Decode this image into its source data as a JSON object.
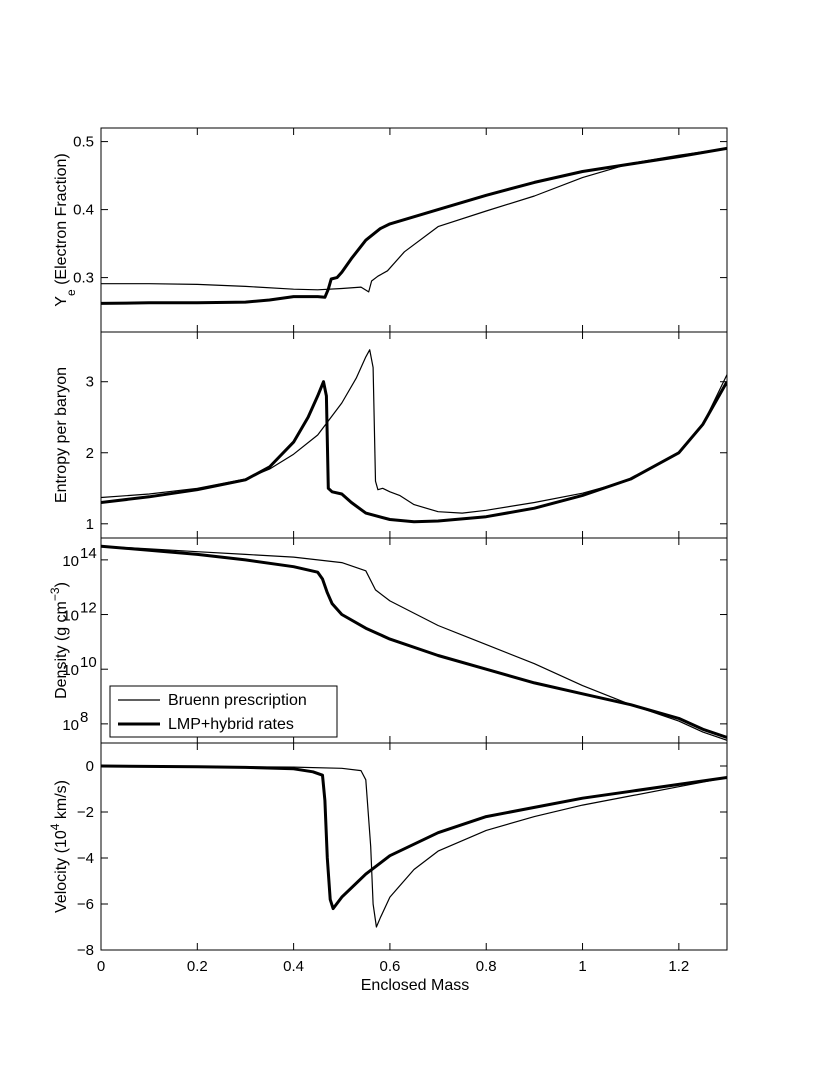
{
  "figure": {
    "xlabel": "Enclosed Mass",
    "xlim": [
      0,
      1.3
    ],
    "xticks": [
      0,
      0.2,
      0.4,
      0.6,
      0.8,
      1,
      1.2
    ],
    "xtick_labels": [
      "0",
      "0.2",
      "0.4",
      "0.6",
      "0.8",
      "1",
      "1.2"
    ],
    "legend": {
      "panel": 3,
      "placement": "lower-left",
      "entries": [
        {
          "label": "Bruenn prescription",
          "style": "thin"
        },
        {
          "label": "LMP+hybrid rates",
          "style": "thick"
        }
      ]
    }
  },
  "chart_data": [
    {
      "type": "line",
      "ylabel": "Y  (Electron Fraction)",
      "ylabel_main": "Y",
      "ylabel_sub": "e",
      "ylabel_rest": " (Electron Fraction)",
      "ylim": [
        0.22,
        0.52
      ],
      "yscale": "linear",
      "yticks": [
        0.3,
        0.4,
        0.5
      ],
      "ytick_labels": [
        "0.3",
        "0.4",
        "0.5"
      ],
      "series": [
        {
          "name": "Bruenn prescription",
          "style": "thin",
          "points": [
            [
              0,
              0.291
            ],
            [
              0.1,
              0.291
            ],
            [
              0.2,
              0.29
            ],
            [
              0.3,
              0.287
            ],
            [
              0.4,
              0.283
            ],
            [
              0.45,
              0.282
            ],
            [
              0.5,
              0.284
            ],
            [
              0.54,
              0.286
            ],
            [
              0.556,
              0.279
            ],
            [
              0.562,
              0.295
            ],
            [
              0.575,
              0.302
            ],
            [
              0.595,
              0.31
            ],
            [
              0.63,
              0.338
            ],
            [
              0.7,
              0.375
            ],
            [
              0.8,
              0.398
            ],
            [
              0.9,
              0.42
            ],
            [
              1.0,
              0.447
            ],
            [
              1.1,
              0.468
            ],
            [
              1.2,
              0.48
            ],
            [
              1.3,
              0.49
            ]
          ]
        },
        {
          "name": "LMP+hybrid rates",
          "style": "thick",
          "points": [
            [
              0,
              0.262
            ],
            [
              0.1,
              0.263
            ],
            [
              0.2,
              0.263
            ],
            [
              0.3,
              0.264
            ],
            [
              0.35,
              0.267
            ],
            [
              0.4,
              0.272
            ],
            [
              0.45,
              0.272
            ],
            [
              0.465,
              0.271
            ],
            [
              0.472,
              0.283
            ],
            [
              0.478,
              0.298
            ],
            [
              0.49,
              0.3
            ],
            [
              0.5,
              0.308
            ],
            [
              0.52,
              0.328
            ],
            [
              0.55,
              0.355
            ],
            [
              0.58,
              0.372
            ],
            [
              0.6,
              0.379
            ],
            [
              0.7,
              0.4
            ],
            [
              0.8,
              0.421
            ],
            [
              0.9,
              0.44
            ],
            [
              1.0,
              0.456
            ],
            [
              1.1,
              0.467
            ],
            [
              1.2,
              0.478
            ],
            [
              1.3,
              0.49
            ]
          ]
        }
      ]
    },
    {
      "type": "line",
      "ylabel": "Entropy per baryon",
      "ylim": [
        0.8,
        3.7
      ],
      "yscale": "linear",
      "yticks": [
        1,
        2,
        3
      ],
      "ytick_labels": [
        "1",
        "2",
        "3"
      ],
      "series": [
        {
          "name": "Bruenn prescription",
          "style": "thin",
          "points": [
            [
              0,
              1.37
            ],
            [
              0.1,
              1.42
            ],
            [
              0.2,
              1.5
            ],
            [
              0.3,
              1.63
            ],
            [
              0.35,
              1.77
            ],
            [
              0.4,
              1.98
            ],
            [
              0.45,
              2.25
            ],
            [
              0.5,
              2.7
            ],
            [
              0.53,
              3.05
            ],
            [
              0.55,
              3.35
            ],
            [
              0.558,
              3.45
            ],
            [
              0.565,
              3.2
            ],
            [
              0.57,
              1.6
            ],
            [
              0.575,
              1.48
            ],
            [
              0.585,
              1.5
            ],
            [
              0.6,
              1.45
            ],
            [
              0.62,
              1.4
            ],
            [
              0.65,
              1.27
            ],
            [
              0.7,
              1.17
            ],
            [
              0.75,
              1.15
            ],
            [
              0.8,
              1.19
            ],
            [
              0.9,
              1.3
            ],
            [
              1.0,
              1.43
            ],
            [
              1.1,
              1.62
            ],
            [
              1.2,
              2.0
            ],
            [
              1.25,
              2.4
            ],
            [
              1.3,
              3.1
            ]
          ]
        },
        {
          "name": "LMP+hybrid rates",
          "style": "thick",
          "points": [
            [
              0,
              1.3
            ],
            [
              0.1,
              1.38
            ],
            [
              0.2,
              1.48
            ],
            [
              0.3,
              1.62
            ],
            [
              0.35,
              1.8
            ],
            [
              0.4,
              2.15
            ],
            [
              0.43,
              2.5
            ],
            [
              0.45,
              2.8
            ],
            [
              0.462,
              3.0
            ],
            [
              0.468,
              2.8
            ],
            [
              0.472,
              1.5
            ],
            [
              0.48,
              1.45
            ],
            [
              0.5,
              1.42
            ],
            [
              0.52,
              1.3
            ],
            [
              0.55,
              1.15
            ],
            [
              0.6,
              1.06
            ],
            [
              0.65,
              1.03
            ],
            [
              0.7,
              1.04
            ],
            [
              0.8,
              1.1
            ],
            [
              0.9,
              1.22
            ],
            [
              1.0,
              1.4
            ],
            [
              1.1,
              1.63
            ],
            [
              1.2,
              2.0
            ],
            [
              1.25,
              2.4
            ],
            [
              1.3,
              3.0
            ]
          ]
        }
      ]
    },
    {
      "type": "line",
      "ylabel": "Density (g cm  )",
      "ylabel_main": "Density (g cm",
      "ylabel_sup": "−3",
      "ylabel_rest": ")",
      "ylim": [
        7.3,
        14.8
      ],
      "yscale": "log10",
      "yticks": [
        8,
        10,
        12,
        14
      ],
      "ytick_labels": [
        "10",
        "10",
        "10",
        "10"
      ],
      "ytick_exponents": [
        "8",
        "10",
        "12",
        "14"
      ],
      "series": [
        {
          "name": "Bruenn prescription",
          "style": "thin",
          "points": [
            [
              0,
              14.5
            ],
            [
              0.1,
              14.4
            ],
            [
              0.2,
              14.3
            ],
            [
              0.3,
              14.2
            ],
            [
              0.4,
              14.1
            ],
            [
              0.5,
              13.9
            ],
            [
              0.55,
              13.6
            ],
            [
              0.57,
              12.9
            ],
            [
              0.6,
              12.5
            ],
            [
              0.7,
              11.6
            ],
            [
              0.8,
              10.9
            ],
            [
              0.9,
              10.2
            ],
            [
              1.0,
              9.4
            ],
            [
              1.1,
              8.7
            ],
            [
              1.2,
              8.1
            ],
            [
              1.25,
              7.7
            ],
            [
              1.3,
              7.4
            ]
          ]
        },
        {
          "name": "LMP+hybrid rates",
          "style": "thick",
          "points": [
            [
              0,
              14.5
            ],
            [
              0.1,
              14.35
            ],
            [
              0.2,
              14.2
            ],
            [
              0.3,
              14.0
            ],
            [
              0.4,
              13.75
            ],
            [
              0.45,
              13.55
            ],
            [
              0.46,
              13.3
            ],
            [
              0.47,
              12.8
            ],
            [
              0.48,
              12.4
            ],
            [
              0.5,
              12.0
            ],
            [
              0.55,
              11.5
            ],
            [
              0.6,
              11.1
            ],
            [
              0.7,
              10.5
            ],
            [
              0.8,
              10.0
            ],
            [
              0.9,
              9.5
            ],
            [
              1.0,
              9.1
            ],
            [
              1.1,
              8.7
            ],
            [
              1.2,
              8.2
            ],
            [
              1.25,
              7.8
            ],
            [
              1.3,
              7.5
            ]
          ]
        }
      ]
    },
    {
      "type": "line",
      "ylabel": "Velocity (10  km/s)",
      "ylabel_main": "Velocity (10",
      "ylabel_sup": "4",
      "ylabel_rest": " km/s)",
      "ylim": [
        -8,
        1
      ],
      "yscale": "linear",
      "yticks": [
        -8,
        -6,
        -4,
        -2,
        0
      ],
      "ytick_labels": [
        "−8",
        "−6",
        "−4",
        "−2",
        "0"
      ],
      "series": [
        {
          "name": "Bruenn prescription",
          "style": "thin",
          "points": [
            [
              0,
              0.0
            ],
            [
              0.2,
              -0.02
            ],
            [
              0.4,
              -0.05
            ],
            [
              0.5,
              -0.1
            ],
            [
              0.54,
              -0.2
            ],
            [
              0.55,
              -0.6
            ],
            [
              0.56,
              -3.5
            ],
            [
              0.565,
              -6.0
            ],
            [
              0.572,
              -7.0
            ],
            [
              0.58,
              -6.6
            ],
            [
              0.6,
              -5.7
            ],
            [
              0.65,
              -4.5
            ],
            [
              0.7,
              -3.7
            ],
            [
              0.8,
              -2.8
            ],
            [
              0.9,
              -2.2
            ],
            [
              1.0,
              -1.7
            ],
            [
              1.1,
              -1.3
            ],
            [
              1.2,
              -0.9
            ],
            [
              1.3,
              -0.5
            ]
          ]
        },
        {
          "name": "LMP+hybrid rates",
          "style": "thick",
          "points": [
            [
              0,
              0.0
            ],
            [
              0.2,
              -0.03
            ],
            [
              0.3,
              -0.06
            ],
            [
              0.4,
              -0.12
            ],
            [
              0.44,
              -0.25
            ],
            [
              0.46,
              -0.4
            ],
            [
              0.465,
              -1.5
            ],
            [
              0.47,
              -4.0
            ],
            [
              0.476,
              -5.8
            ],
            [
              0.482,
              -6.2
            ],
            [
              0.5,
              -5.7
            ],
            [
              0.55,
              -4.7
            ],
            [
              0.6,
              -3.9
            ],
            [
              0.7,
              -2.9
            ],
            [
              0.8,
              -2.2
            ],
            [
              0.9,
              -1.8
            ],
            [
              1.0,
              -1.4
            ],
            [
              1.1,
              -1.1
            ],
            [
              1.2,
              -0.8
            ],
            [
              1.3,
              -0.5
            ]
          ]
        }
      ]
    }
  ]
}
